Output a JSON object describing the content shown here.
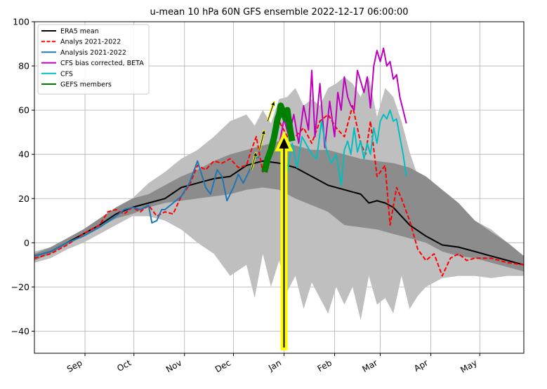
{
  "chart_data": {
    "type": "line",
    "title": "u-mean 10 hPa 60N GFS ensemble 2022-12-17 06:00:00",
    "xlabel": "",
    "ylabel": "",
    "ylim": [
      -50,
      100
    ],
    "xlim": [
      0,
      300
    ],
    "x_unit": "days after 2022-08-01",
    "grid": true,
    "legend_placement": "top-left",
    "x_ticks": [
      {
        "label": "Sep",
        "x": 31
      },
      {
        "label": "Oct",
        "x": 61
      },
      {
        "label": "Nov",
        "x": 92
      },
      {
        "label": "Dec",
        "x": 122
      },
      {
        "label": "Jan",
        "x": 153
      },
      {
        "label": "Feb",
        "x": 184
      },
      {
        "label": "Mar",
        "x": 212
      },
      {
        "label": "Apr",
        "x": 243
      },
      {
        "label": "May",
        "x": 273
      }
    ],
    "y_ticks": [
      100,
      80,
      60,
      40,
      20,
      0,
      -20,
      -40
    ],
    "legend": [
      {
        "label": "ERA5 mean",
        "color": "#000000",
        "style": "solid"
      },
      {
        "label": "Analys 2021-2022",
        "color": "#ff0000",
        "style": "dashed"
      },
      {
        "label": "Analysis 2021-2022",
        "color": "#1f77b4",
        "style": "solid"
      },
      {
        "label": "CFS bias corrected, BETA",
        "color": "#bf00bf",
        "style": "solid"
      },
      {
        "label": "CFS",
        "color": "#00bfbf",
        "style": "solid"
      },
      {
        "label": "GEFS members",
        "color": "#008000",
        "style": "solid"
      }
    ],
    "bands": {
      "outer": {
        "color": "#bfbfbf",
        "x": [
          0,
          10,
          20,
          30,
          40,
          50,
          60,
          70,
          80,
          90,
          100,
          110,
          120,
          130,
          135,
          140,
          145,
          150,
          155,
          160,
          165,
          170,
          175,
          180,
          185,
          190,
          195,
          200,
          205,
          210,
          215,
          220,
          225,
          230,
          235,
          240,
          250,
          260,
          270,
          280,
          290,
          300
        ],
        "upper": [
          -4,
          -2,
          2,
          6,
          11,
          15,
          20,
          27,
          32,
          38,
          42,
          48,
          55,
          58,
          53,
          60,
          54,
          65,
          66,
          70,
          62,
          65,
          62,
          70,
          72,
          75,
          72,
          66,
          75,
          57,
          70,
          66,
          55,
          41,
          30,
          25,
          20,
          16,
          10,
          6,
          0,
          -6
        ],
        "lower": [
          -9,
          -7,
          -3,
          0,
          4,
          8,
          12,
          12,
          10,
          6,
          0,
          -5,
          -15,
          -10,
          -25,
          -5,
          -20,
          -8,
          -22,
          -15,
          -30,
          -18,
          -25,
          -32,
          -20,
          -28,
          -20,
          -35,
          -15,
          -28,
          -25,
          -32,
          -15,
          -30,
          -24,
          -20,
          -16,
          -15,
          -15,
          -16,
          -15,
          -15
        ]
      },
      "inner": {
        "color": "#8c8c8c",
        "x": [
          0,
          10,
          20,
          30,
          40,
          50,
          60,
          70,
          80,
          90,
          100,
          110,
          120,
          130,
          140,
          150,
          160,
          170,
          180,
          190,
          200,
          210,
          220,
          230,
          240,
          250,
          260,
          270,
          280,
          290,
          300
        ],
        "upper": [
          -5,
          -2,
          2,
          6,
          11,
          16,
          20,
          22,
          26,
          30,
          33,
          37,
          40,
          42,
          44,
          46,
          44,
          42,
          42,
          40,
          38,
          37,
          36,
          34,
          30,
          24,
          18,
          10,
          5,
          0,
          -6
        ],
        "lower": [
          -8,
          -5,
          -1,
          3,
          7,
          11,
          13,
          16,
          18,
          19,
          20,
          21,
          22,
          24,
          25,
          24,
          20,
          17,
          14,
          8,
          7,
          6,
          4,
          2,
          0,
          -4,
          -6,
          -7,
          -9,
          -11,
          -13
        ]
      }
    },
    "series": [
      {
        "name": "ERA5 mean",
        "color": "#000000",
        "x": [
          0,
          10,
          20,
          30,
          40,
          50,
          60,
          70,
          80,
          90,
          100,
          110,
          120,
          130,
          140,
          150,
          160,
          170,
          180,
          190,
          200,
          205,
          210,
          215,
          220,
          230,
          240,
          250,
          260,
          270,
          280,
          290,
          300
        ],
        "values": [
          -6,
          -4,
          0,
          4,
          8,
          13,
          16,
          18,
          20,
          25,
          27,
          29,
          30,
          35,
          37,
          36,
          34,
          30,
          26,
          24,
          22,
          18,
          19,
          18,
          16,
          8,
          3,
          -1,
          -2,
          -4,
          -6,
          -8,
          -10
        ]
      },
      {
        "name": "Analys 2021-2022",
        "color": "#ff0000",
        "x": [
          0,
          10,
          20,
          30,
          40,
          45,
          50,
          55,
          60,
          65,
          70,
          75,
          80,
          85,
          90,
          95,
          100,
          105,
          110,
          115,
          120,
          125,
          130,
          133,
          136,
          140,
          145,
          150,
          155,
          160,
          165,
          170,
          175,
          180,
          185,
          190,
          195,
          200,
          203,
          206,
          210,
          215,
          218,
          222,
          225,
          230,
          235,
          240,
          245,
          250,
          255,
          260,
          265,
          270,
          280,
          290,
          300
        ],
        "values": [
          -7,
          -5,
          -1,
          4,
          8,
          14,
          15,
          13,
          16,
          14,
          17,
          12,
          14,
          13,
          21,
          26,
          35,
          33,
          37,
          36,
          38,
          34,
          35,
          42,
          48,
          32,
          40,
          55,
          48,
          48,
          52,
          45,
          55,
          58,
          52,
          48,
          62,
          45,
          40,
          55,
          30,
          35,
          8,
          25,
          20,
          10,
          -3,
          -8,
          -5,
          -15,
          -7,
          -5,
          -8,
          -7,
          -7,
          -9,
          -10
        ]
      },
      {
        "name": "Analysis 2021-2022",
        "color": "#1f77b4",
        "x": [
          0,
          10,
          20,
          30,
          40,
          50,
          55,
          60,
          65,
          70,
          72,
          75,
          78,
          80,
          85,
          90,
          95,
          100,
          105,
          108,
          112,
          115,
          118,
          122,
          125,
          128,
          132,
          135,
          138
        ],
        "values": [
          -6,
          -4,
          0,
          3,
          7,
          12,
          15,
          16,
          15,
          17,
          9,
          10,
          15,
          15,
          18,
          21,
          27,
          37,
          25,
          22,
          33,
          30,
          19,
          25,
          31,
          27,
          33,
          38,
          39
        ]
      },
      {
        "name": "CFS bias corrected, BETA",
        "color": "#bf00bf",
        "x": [
          150,
          153,
          156,
          159,
          162,
          165,
          168,
          170,
          172,
          175,
          178,
          181,
          184,
          186,
          188,
          190,
          192,
          194,
          196,
          198,
          200,
          202,
          204,
          206,
          208,
          210,
          212,
          214,
          216,
          218,
          220,
          222,
          224,
          226,
          228
        ],
        "values": [
          44,
          56,
          48,
          58,
          45,
          62,
          51,
          78,
          48,
          72,
          43,
          64,
          48,
          68,
          60,
          75,
          66,
          62,
          60,
          78,
          73,
          68,
          75,
          61,
          80,
          87,
          82,
          88,
          80,
          82,
          74,
          76,
          66,
          60,
          54
        ]
      },
      {
        "name": "CFS",
        "color": "#00bfbf",
        "x": [
          150,
          152,
          155,
          158,
          161,
          164,
          167,
          170,
          173,
          176,
          179,
          182,
          185,
          188,
          190,
          192,
          194,
          196,
          198,
          200,
          202,
          204,
          206,
          208,
          210,
          212,
          214,
          216,
          218,
          220,
          222,
          224,
          226,
          228
        ],
        "values": [
          43,
          38,
          32,
          45,
          34,
          48,
          44,
          40,
          38,
          55,
          42,
          36,
          40,
          26,
          42,
          46,
          40,
          52,
          41,
          46,
          38,
          45,
          40,
          52,
          45,
          55,
          58,
          56,
          60,
          55,
          56,
          48,
          40,
          30
        ]
      },
      {
        "name": "GEFS members",
        "color": "#008000",
        "x": [
          141,
          143,
          145,
          147,
          148,
          149,
          150,
          151,
          152,
          153,
          154,
          155,
          156,
          157,
          158
        ],
        "values": [
          32,
          38,
          42,
          48,
          52,
          56,
          58,
          62,
          60,
          58,
          56,
          60,
          55,
          50,
          46
        ]
      }
    ],
    "annotations": {
      "current_date_arrow": {
        "x": 153,
        "y_from": -48,
        "y_to": 49,
        "fill": "#000000",
        "edge": "#ffff00"
      },
      "small_arrows": [
        {
          "x1": 143,
          "y1": 55,
          "x2": 147,
          "y2": 64
        },
        {
          "x1": 138,
          "y1": 42,
          "x2": 141,
          "y2": 51
        },
        {
          "x1": 133,
          "y1": 33,
          "x2": 136,
          "y2": 41
        }
      ]
    }
  }
}
